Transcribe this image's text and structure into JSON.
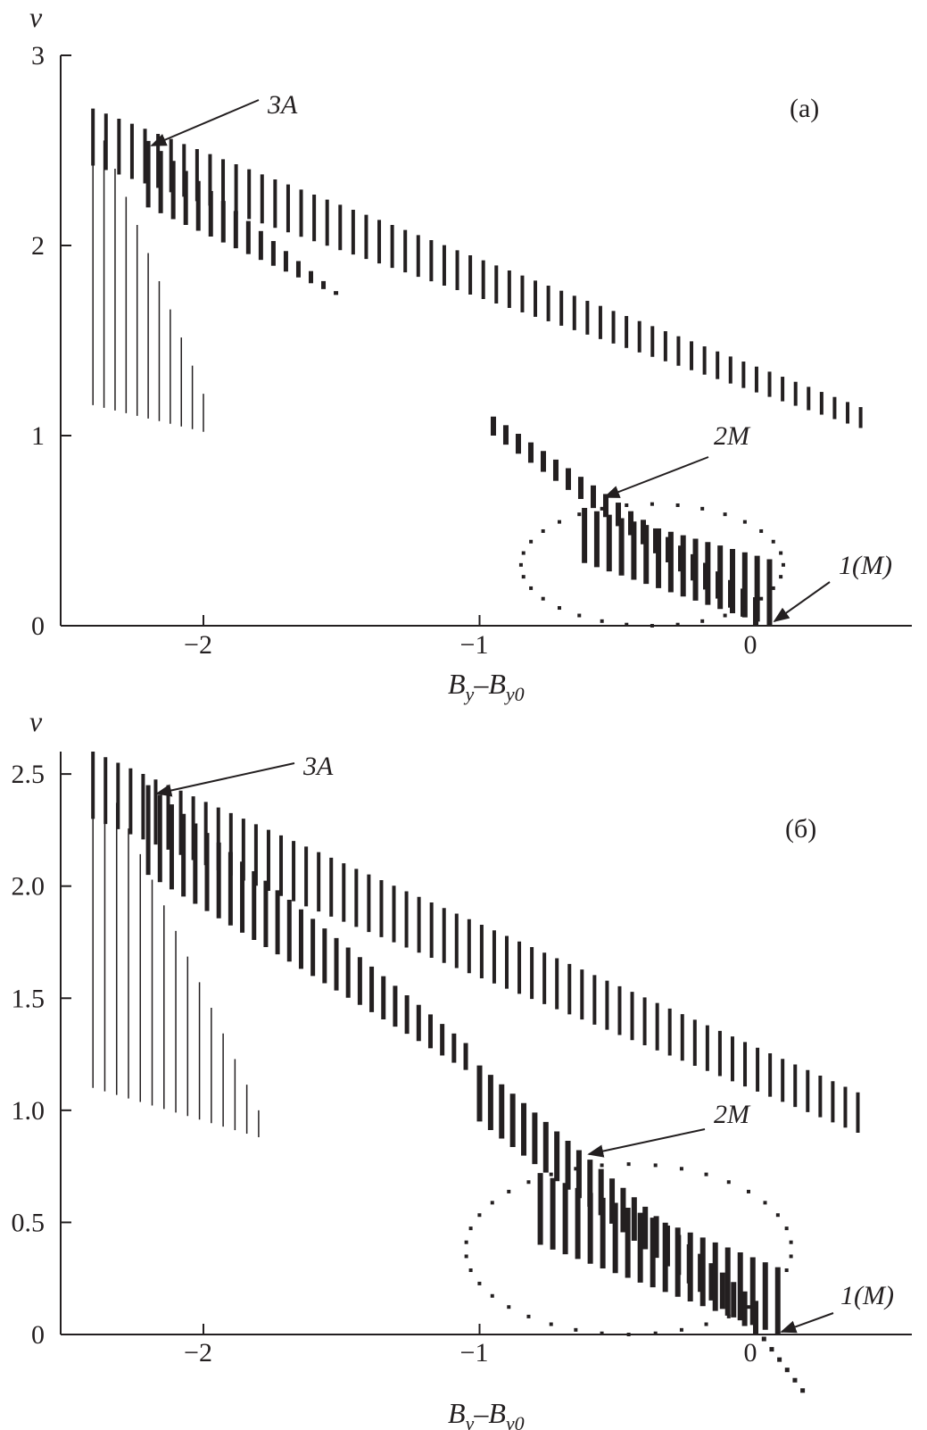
{
  "chart_data": [
    {
      "type": "scatter",
      "panel_label": "(a)",
      "ylabel": "v",
      "xlabel": {
        "main": "B",
        "sub1": "y",
        "dash": "–",
        "main2": "B",
        "sub2": "y0"
      },
      "xlim": [
        -2.5,
        0.5
      ],
      "ylim": [
        0,
        3
      ],
      "xticks": [
        -2,
        -1,
        0
      ],
      "xtick_labels": [
        "−2",
        "−1",
        "0"
      ],
      "yticks": [
        0,
        1,
        2,
        3
      ],
      "ytick_labels": [
        "0",
        "1",
        "2",
        "3"
      ],
      "annotations": [
        {
          "label": "3A",
          "x": -2.2,
          "y": 2.52
        },
        {
          "label": "2M",
          "x": -0.6,
          "y": 0.67
        },
        {
          "label": "1(M)",
          "x": 0.0,
          "y": 0.0
        }
      ],
      "bands": [
        {
          "name": "upper branch",
          "x_start": -2.4,
          "x_end": 0.38,
          "n": 60,
          "top_start": 2.72,
          "top_end": 1.15,
          "bot_start": 2.42,
          "bot_end": 1.04,
          "width": 4
        },
        {
          "name": "middle branch",
          "x_start": -2.2,
          "x_end": -1.52,
          "n": 16,
          "top_start": 2.55,
          "top_end": 1.76,
          "bot_start": 2.2,
          "bot_end": 1.74,
          "width": 5
        },
        {
          "name": "chaotic lines",
          "x_start": -2.4,
          "x_end": -2.0,
          "n": 11,
          "top_start": 2.7,
          "top_end": 1.22,
          "bot_start": 1.16,
          "bot_end": 1.02,
          "width": 1.5
        },
        {
          "name": "2M branch",
          "x_start": -0.95,
          "x_end": 0.0,
          "n": 22,
          "top_start": 1.1,
          "top_end": 0.15,
          "bot_start": 1.0,
          "bot_end": 0.0,
          "width": 6
        },
        {
          "name": "2M lower",
          "x_start": -0.62,
          "x_end": 0.05,
          "n": 16,
          "top_start": 0.62,
          "top_end": 0.35,
          "bot_start": 0.33,
          "bot_end": 0.0,
          "width": 6
        }
      ],
      "loops": [
        {
          "name": "2M loop",
          "x_left": -0.85,
          "x_right": 0.1,
          "y_top": 0.64,
          "y_bot": 0.0,
          "n": 32
        }
      ]
    },
    {
      "type": "scatter",
      "panel_label": "(б)",
      "ylabel": "v",
      "xlabel": {
        "main": "B",
        "sub1": "y",
        "dash": "–",
        "main2": "B",
        "sub2": "y0"
      },
      "xlim": [
        -2.5,
        0.5
      ],
      "ylim": [
        0,
        2.6
      ],
      "xticks": [
        -2,
        -1,
        0
      ],
      "xtick_labels": [
        "−2",
        "−1",
        "0"
      ],
      "yticks": [
        0,
        0.5,
        1.0,
        1.5,
        2.0,
        2.5
      ],
      "ytick_labels": [
        "0",
        "0.5",
        "1.0",
        "1.5",
        "2.0",
        "2.5"
      ],
      "annotations": [
        {
          "label": "3A",
          "x": -2.18,
          "y": 2.35
        },
        {
          "label": "2M",
          "x": -0.68,
          "y": 0.77
        },
        {
          "label": "1(M)",
          "x": 0.0,
          "y": 0.0
        }
      ],
      "bands": [
        {
          "name": "upper branch",
          "x_start": -2.4,
          "x_end": 0.37,
          "n": 62,
          "top_start": 2.6,
          "top_end": 1.08,
          "bot_start": 2.3,
          "bot_end": 0.9,
          "width": 4
        },
        {
          "name": "middle branch",
          "x_start": -2.2,
          "x_end": -1.05,
          "n": 28,
          "top_start": 2.45,
          "top_end": 1.3,
          "bot_start": 2.05,
          "bot_end": 1.18,
          "width": 5
        },
        {
          "name": "chaotic lines",
          "x_start": -2.4,
          "x_end": -1.8,
          "n": 15,
          "top_start": 2.6,
          "top_end": 1.0,
          "bot_start": 1.1,
          "bot_end": 0.88,
          "width": 1.5
        },
        {
          "name": "2M branch",
          "x_start": -1.0,
          "x_end": 0.0,
          "n": 26,
          "top_start": 1.2,
          "top_end": 0.15,
          "bot_start": 0.95,
          "bot_end": 0.0,
          "width": 6
        },
        {
          "name": "2M lower",
          "x_start": -0.78,
          "x_end": 0.08,
          "n": 20,
          "top_start": 0.72,
          "top_end": 0.3,
          "bot_start": 0.4,
          "bot_end": 0.0,
          "width": 6
        },
        {
          "name": "right tail",
          "x_start": 0.03,
          "x_end": 0.17,
          "n": 6,
          "top_start": -0.01,
          "top_end": -0.24,
          "bot_start": -0.03,
          "bot_end": -0.26,
          "width": 5
        }
      ],
      "loops": [
        {
          "name": "2M loop",
          "x_left": -1.05,
          "x_right": 0.13,
          "y_top": 0.76,
          "y_bot": 0.0,
          "n": 38
        }
      ]
    }
  ]
}
